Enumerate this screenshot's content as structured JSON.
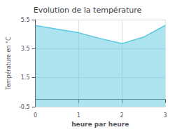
{
  "chart_data": {
    "type": "area",
    "title": "Evolution de la température",
    "xlabel": "heure par heure",
    "ylabel": "Température en °C",
    "x": [
      0,
      0.5,
      1.0,
      1.5,
      2.0,
      2.5,
      3.0
    ],
    "values": [
      5.1,
      4.85,
      4.6,
      4.2,
      3.85,
      4.3,
      5.1
    ],
    "color": "#5bc8e0",
    "xlim": [
      0,
      3
    ],
    "xticks": [
      0,
      1,
      2,
      3
    ],
    "ylim": [
      -0.5,
      5.5
    ],
    "yticks": [
      -0.5,
      1.5,
      3.5,
      5.5
    ],
    "grid": true
  }
}
